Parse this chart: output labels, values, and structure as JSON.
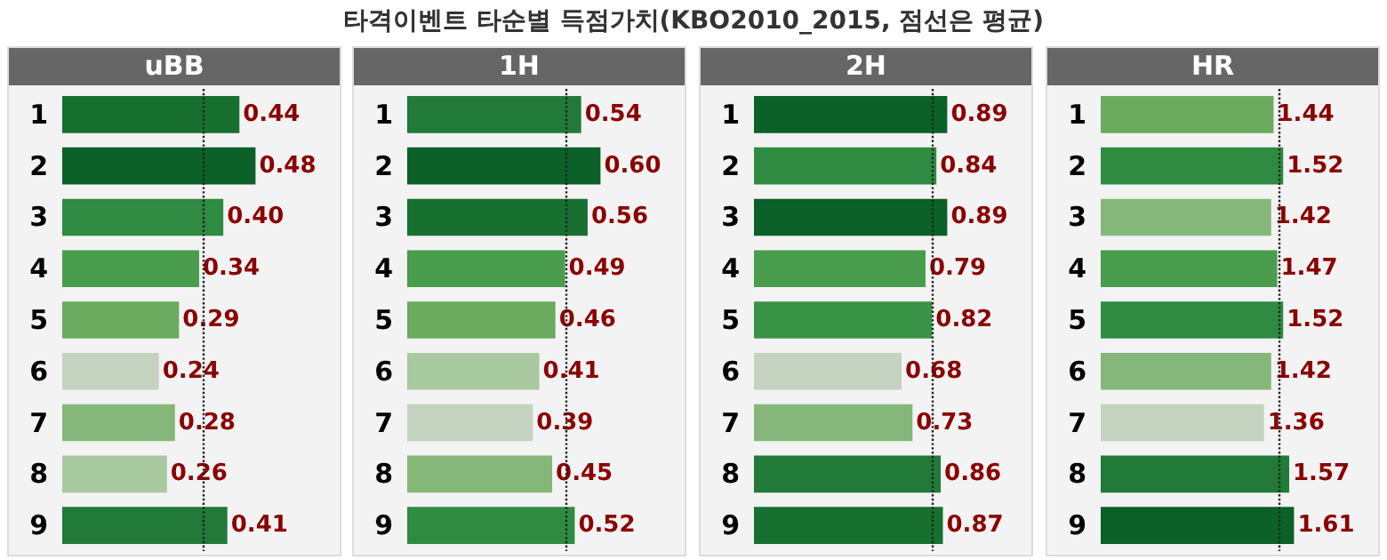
{
  "chart_data": [
    {
      "type": "other",
      "title": "타격이벤트 타순별 득점가치(KBO2010_2015, 점선은 평균)"
    },
    {
      "type": "bar",
      "orientation": "horizontal",
      "title": "uBB",
      "categories": [
        "1",
        "2",
        "3",
        "4",
        "5",
        "6",
        "7",
        "8",
        "9"
      ],
      "values": [
        0.44,
        0.48,
        0.4,
        0.34,
        0.29,
        0.24,
        0.28,
        0.26,
        0.41
      ],
      "value_labels": [
        "0.44",
        "0.48",
        "0.40",
        "0.34",
        "0.29",
        "0.24",
        "0.28",
        "0.26",
        "0.41"
      ],
      "colors": [
        "#17702f",
        "#0b6128",
        "#2e8b41",
        "#4a9d4d",
        "#6aab5f",
        "#c3d3bf",
        "#86b77a",
        "#a9c9a0",
        "#217a37"
      ],
      "tick_labels": "y",
      "ref_lines": [
        {
          "axis": "x",
          "value": 0.35,
          "line_style": "dotted"
        }
      ]
    },
    {
      "type": "bar",
      "orientation": "horizontal",
      "title": "1H",
      "categories": [
        "1",
        "2",
        "3",
        "4",
        "5",
        "6",
        "7",
        "8",
        "9"
      ],
      "values": [
        0.54,
        0.6,
        0.56,
        0.49,
        0.46,
        0.41,
        0.39,
        0.45,
        0.52
      ],
      "value_labels": [
        "0.54",
        "0.60",
        "0.56",
        "0.49",
        "0.46",
        "0.41",
        "0.39",
        "0.45",
        "0.52"
      ],
      "colors": [
        "#217a37",
        "#0b6128",
        "#17702f",
        "#4a9d4d",
        "#6aab5f",
        "#a9c9a0",
        "#c3d3bf",
        "#86b77a",
        "#2e8b41"
      ],
      "tick_labels": "y",
      "ref_lines": [
        {
          "axis": "x",
          "value": 0.49,
          "line_style": "dotted"
        }
      ]
    },
    {
      "type": "bar",
      "orientation": "horizontal",
      "title": "2H",
      "categories": [
        "1",
        "2",
        "3",
        "4",
        "5",
        "6",
        "7",
        "8",
        "9"
      ],
      "values": [
        0.89,
        0.84,
        0.89,
        0.79,
        0.82,
        0.68,
        0.73,
        0.86,
        0.87
      ],
      "value_labels": [
        "0.89",
        "0.84",
        "0.89",
        "0.79",
        "0.82",
        "0.68",
        "0.73",
        "0.86",
        "0.87"
      ],
      "colors": [
        "#0b6128",
        "#2e8b41",
        "#0b6128",
        "#4a9d4d",
        "#3a9447",
        "#c3d3bf",
        "#86b77a",
        "#217a37",
        "#17702f"
      ],
      "tick_labels": "y",
      "ref_lines": [
        {
          "axis": "x",
          "value": 0.82,
          "line_style": "dotted"
        }
      ]
    },
    {
      "type": "bar",
      "orientation": "horizontal",
      "title": "HR",
      "categories": [
        "1",
        "2",
        "3",
        "4",
        "5",
        "6",
        "7",
        "8",
        "9"
      ],
      "values": [
        1.44,
        1.52,
        1.42,
        1.47,
        1.52,
        1.42,
        1.36,
        1.57,
        1.61
      ],
      "value_labels": [
        "1.44",
        "1.52",
        "1.42",
        "1.47",
        "1.52",
        "1.42",
        "1.36",
        "1.57",
        "1.61"
      ],
      "colors": [
        "#6aab5f",
        "#2e8b41",
        "#86b77a",
        "#4a9d4d",
        "#2e8b41",
        "#86b77a",
        "#c3d3bf",
        "#217a37",
        "#0b6128"
      ],
      "tick_labels": "y",
      "ref_lines": [
        {
          "axis": "x",
          "value": 1.48,
          "line_style": "dotted"
        }
      ]
    }
  ]
}
